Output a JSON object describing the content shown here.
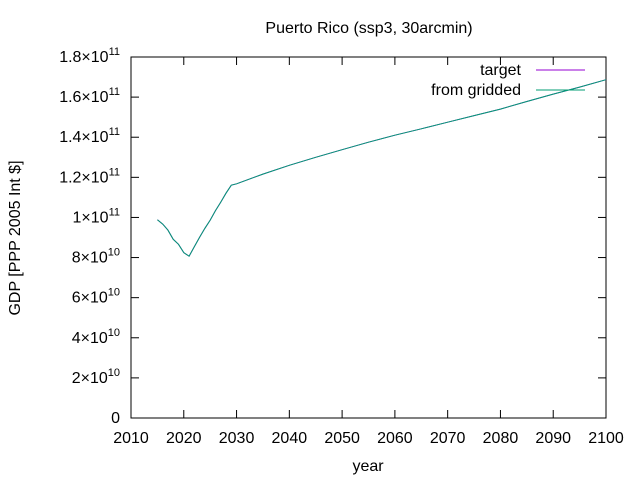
{
  "chart_data": {
    "type": "line",
    "title": "Puerto Rico (ssp3, 30arcmin)",
    "xlabel": "year",
    "ylabel": "GDP [PPP 2005 Int $]",
    "xlim": [
      2010,
      2100
    ],
    "ylim": [
      0,
      180000000000
    ],
    "x_ticks": [
      2010,
      2020,
      2030,
      2040,
      2050,
      2060,
      2070,
      2080,
      2090,
      2100
    ],
    "y_ticks": [
      {
        "value": 0,
        "mantissa": "0",
        "exponent": ""
      },
      {
        "value": 20000000000,
        "mantissa": "2×10",
        "exponent": "10"
      },
      {
        "value": 40000000000,
        "mantissa": "4×10",
        "exponent": "10"
      },
      {
        "value": 60000000000,
        "mantissa": "6×10",
        "exponent": "10"
      },
      {
        "value": 80000000000,
        "mantissa": "8×10",
        "exponent": "10"
      },
      {
        "value": 100000000000,
        "mantissa": "1×10",
        "exponent": "11"
      },
      {
        "value": 120000000000,
        "mantissa": "1.2×10",
        "exponent": "11"
      },
      {
        "value": 140000000000,
        "mantissa": "1.4×10",
        "exponent": "11"
      },
      {
        "value": 160000000000,
        "mantissa": "1.6×10",
        "exponent": "11"
      },
      {
        "value": 180000000000,
        "mantissa": "1.8×10",
        "exponent": "11"
      }
    ],
    "grid": false,
    "legend_position": "top-right",
    "series": [
      {
        "name": "target",
        "color": "#9400d3",
        "x": [
          2015,
          2016,
          2017,
          2018,
          2019,
          2020,
          2021,
          2022,
          2023,
          2024,
          2025,
          2026,
          2027,
          2028,
          2029,
          2030,
          2035,
          2040,
          2045,
          2050,
          2055,
          2060,
          2065,
          2070,
          2075,
          2080,
          2085,
          2090,
          2095,
          2100
        ],
        "y": [
          98900000000,
          96700000000,
          93700000000,
          89100000000,
          86600000000,
          82400000000,
          80700000000,
          85400000000,
          90100000000,
          94600000000,
          98700000000,
          103300000000,
          107600000000,
          112100000000,
          116100000000,
          116800000000,
          121600000000,
          126000000000,
          130000000000,
          133800000000,
          137500000000,
          141000000000,
          144200000000,
          147500000000,
          150800000000,
          154000000000,
          157800000000,
          161500000000,
          165000000000,
          168700000000
        ]
      },
      {
        "name": "from gridded",
        "color": "#009e73",
        "x": [
          2015,
          2016,
          2017,
          2018,
          2019,
          2020,
          2021,
          2022,
          2023,
          2024,
          2025,
          2026,
          2027,
          2028,
          2029,
          2030,
          2035,
          2040,
          2045,
          2050,
          2055,
          2060,
          2065,
          2070,
          2075,
          2080,
          2085,
          2090,
          2095,
          2100
        ],
        "y": [
          98900000000,
          96700000000,
          93700000000,
          89100000000,
          86600000000,
          82400000000,
          80700000000,
          85400000000,
          90100000000,
          94600000000,
          98700000000,
          103300000000,
          107600000000,
          112100000000,
          116100000000,
          116800000000,
          121600000000,
          126000000000,
          130000000000,
          133800000000,
          137500000000,
          141000000000,
          144200000000,
          147500000000,
          150800000000,
          154000000000,
          157800000000,
          161500000000,
          165000000000,
          168700000000
        ]
      }
    ]
  }
}
